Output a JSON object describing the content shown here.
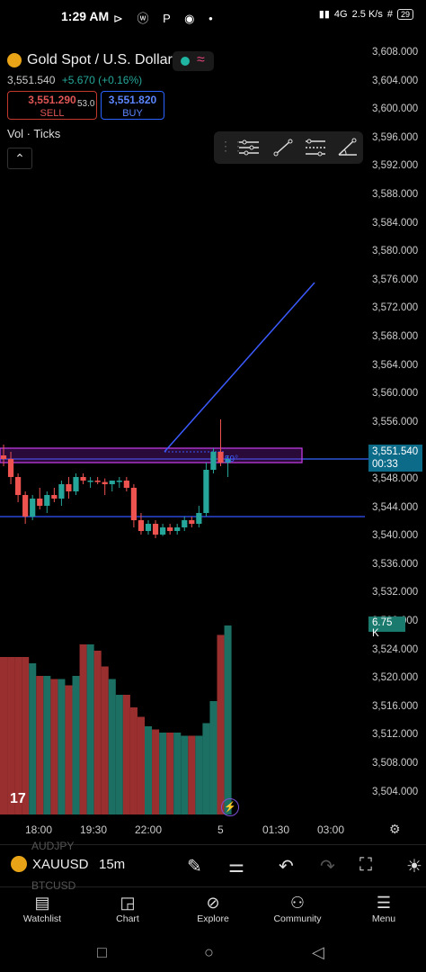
{
  "status_bar": {
    "time": "1:29 AM",
    "icons": "⊳ ⓦ P ◉ •",
    "network": "4G",
    "speed_value": "2.5",
    "speed_unit": "K/s",
    "battery": "29"
  },
  "instrument": {
    "name": "Gold Spot / U.S. Dollar",
    "price": "3,551.540",
    "change": "+5.670 (+0.16%)",
    "sell_price": "3,551.290",
    "sell_label": "SELL",
    "spread": "53.0",
    "buy_price": "3,551.820",
    "buy_label": "BUY",
    "volume_label": "Vol · Ticks",
    "collapse_icon": "chevron-up",
    "market_status_color": "#1fb5a2"
  },
  "drawing_toolbar": {
    "tools": [
      "horizontal-lines-tool",
      "trend-line-tool",
      "parallel-channel-tool",
      "angle-tool"
    ]
  },
  "price_axis": {
    "ticks": [
      "3,608.000",
      "3,604.000",
      "3,600.000",
      "3,596.000",
      "3,592.000",
      "3,588.000",
      "3,584.000",
      "3,580.000",
      "3,576.000",
      "3,572.000",
      "3,568.000",
      "3,564.000",
      "3,560.000",
      "3,556.000",
      "3,552.000",
      "3,548.000",
      "3,544.000",
      "3,540.000",
      "3,536.000",
      "3,532.000",
      "3,528.000",
      "3,524.000",
      "3,520.000",
      "3,516.000",
      "3,512.000",
      "3,508.000",
      "3,504.000"
    ],
    "last_price": "3,551.540",
    "countdown": "00:33",
    "volume_tag": "6.75 K"
  },
  "time_axis": {
    "ticks": [
      "18:00",
      "19:30",
      "22:00",
      "5",
      "01:30",
      "03:00"
    ]
  },
  "chart_data": {
    "type": "candlestick",
    "up_color": "#26a69a",
    "down_color": "#ef5350",
    "candles": [
      {
        "o": 3552.0,
        "h": 3553.5,
        "l": 3550.5,
        "c": 3551.5
      },
      {
        "o": 3551.5,
        "h": 3552.5,
        "l": 3548.0,
        "c": 3549.0
      },
      {
        "o": 3549.0,
        "h": 3549.5,
        "l": 3545.5,
        "c": 3546.5
      },
      {
        "o": 3546.5,
        "h": 3547.0,
        "l": 3542.5,
        "c": 3543.5
      },
      {
        "o": 3543.5,
        "h": 3546.5,
        "l": 3543.0,
        "c": 3546.0
      },
      {
        "o": 3546.0,
        "h": 3547.5,
        "l": 3544.5,
        "c": 3545.0
      },
      {
        "o": 3545.0,
        "h": 3547.0,
        "l": 3544.0,
        "c": 3546.5
      },
      {
        "o": 3546.5,
        "h": 3547.5,
        "l": 3545.5,
        "c": 3546.0
      },
      {
        "o": 3546.0,
        "h": 3548.5,
        "l": 3545.0,
        "c": 3548.0
      },
      {
        "o": 3548.0,
        "h": 3549.0,
        "l": 3546.0,
        "c": 3547.0
      },
      {
        "o": 3547.0,
        "h": 3549.5,
        "l": 3546.5,
        "c": 3549.0
      },
      {
        "o": 3549.0,
        "h": 3549.5,
        "l": 3548.0,
        "c": 3548.5
      },
      {
        "o": 3548.5,
        "h": 3549.0,
        "l": 3547.5,
        "c": 3548.5
      },
      {
        "o": 3548.5,
        "h": 3549.0,
        "l": 3548.0,
        "c": 3548.3
      },
      {
        "o": 3548.3,
        "h": 3548.8,
        "l": 3546.5,
        "c": 3548.0
      },
      {
        "o": 3548.0,
        "h": 3548.5,
        "l": 3547.0,
        "c": 3548.5
      },
      {
        "o": 3548.5,
        "h": 3549.0,
        "l": 3547.5,
        "c": 3548.5
      },
      {
        "o": 3548.5,
        "h": 3549.0,
        "l": 3547.0,
        "c": 3547.5
      },
      {
        "o": 3547.5,
        "h": 3548.0,
        "l": 3542.0,
        "c": 3543.0
      },
      {
        "o": 3543.0,
        "h": 3544.0,
        "l": 3541.0,
        "c": 3541.5
      },
      {
        "o": 3541.5,
        "h": 3543.0,
        "l": 3541.0,
        "c": 3542.5
      },
      {
        "o": 3542.5,
        "h": 3543.0,
        "l": 3540.5,
        "c": 3541.0
      },
      {
        "o": 3541.0,
        "h": 3542.5,
        "l": 3540.8,
        "c": 3542.0
      },
      {
        "o": 3542.0,
        "h": 3542.5,
        "l": 3541.0,
        "c": 3541.5
      },
      {
        "o": 3541.5,
        "h": 3542.5,
        "l": 3541.0,
        "c": 3542.0
      },
      {
        "o": 3542.0,
        "h": 3543.5,
        "l": 3541.5,
        "c": 3543.0
      },
      {
        "o": 3543.0,
        "h": 3543.5,
        "l": 3542.0,
        "c": 3542.5
      },
      {
        "o": 3542.5,
        "h": 3545.0,
        "l": 3542.0,
        "c": 3544.0
      },
      {
        "o": 3544.0,
        "h": 3551.0,
        "l": 3543.5,
        "c": 3550.0
      },
      {
        "o": 3550.0,
        "h": 3553.0,
        "l": 3549.5,
        "c": 3552.5
      },
      {
        "o": 3552.5,
        "h": 3557.0,
        "l": 3550.5,
        "c": 3551.0
      },
      {
        "o": 3551.0,
        "h": 3552.0,
        "l": 3549.0,
        "c": 3551.5
      }
    ],
    "volume": [
      500,
      500,
      500,
      500,
      480,
      440,
      440,
      430,
      430,
      410,
      440,
      540,
      540,
      520,
      470,
      430,
      380,
      380,
      340,
      310,
      280,
      270,
      260,
      260,
      260,
      250,
      250,
      250,
      290,
      360,
      570,
      600
    ],
    "lines": {
      "support": 3543.5,
      "current_price": 3551.5,
      "zone_top": 3553.0,
      "zone_bottom": 3551.0,
      "ray_from": 3552.5,
      "ray_to": 3576.0
    },
    "zone_label": "59°",
    "ylim": [
      3502.0,
      3610.0
    ]
  },
  "bottom_bar": {
    "symbol": "XAUUSD",
    "ghost_above": "AUDJPY",
    "ghost_below": "BTCUSD",
    "interval": "15m"
  },
  "nav": {
    "items": [
      "Watchlist",
      "Chart",
      "Explore",
      "Community",
      "Menu"
    ]
  },
  "sysnav": {
    "recents": "□",
    "home": "○",
    "back": "◁"
  },
  "tv_logo": "17"
}
